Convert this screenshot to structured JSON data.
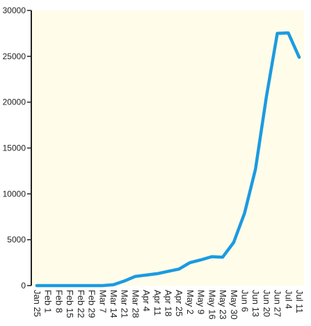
{
  "colors": {
    "plot_background": "#fffcea",
    "line": "#1b9be0",
    "axis": "#222222",
    "text": "#222222"
  },
  "chart_data": {
    "type": "line",
    "title": "",
    "xlabel": "",
    "ylabel": "",
    "ylim": [
      0,
      30000
    ],
    "yticks": [
      0,
      5000,
      10000,
      15000,
      20000,
      25000,
      30000
    ],
    "ytick_labels": [
      "0",
      "5000",
      "10000",
      "15000",
      "20000",
      "25000",
      "30000"
    ],
    "grid": false,
    "x": [
      "Jan 25",
      "Feb 1",
      "Feb 8",
      "Feb 15",
      "Feb 22",
      "Feb 29",
      "Mar 7",
      "Mar 14",
      "Mar 21",
      "Mar 28",
      "Apr 4",
      "Apr 11",
      "Apr 18",
      "Apr 25",
      "May 2",
      "May 9",
      "May 16",
      "May 23",
      "May 30",
      "Jun 6",
      "Jun 13",
      "Jun 20",
      "Jun 27",
      "Jul 4",
      "Jul 11"
    ],
    "series": [
      {
        "values": [
          0,
          0,
          0,
          0,
          0,
          0,
          0,
          100,
          500,
          1000,
          1150,
          1300,
          1550,
          1800,
          2500,
          2800,
          3150,
          3100,
          4700,
          7900,
          12700,
          20600,
          27500,
          27550,
          24900
        ]
      }
    ]
  }
}
